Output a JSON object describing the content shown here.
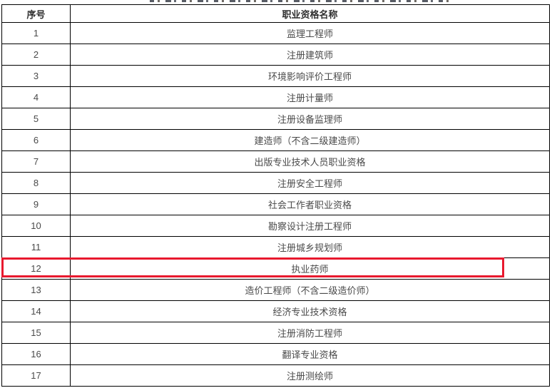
{
  "table": {
    "headers": [
      "序号",
      "职业资格名称"
    ],
    "rows": [
      {
        "no": "1",
        "name": "监理工程师"
      },
      {
        "no": "2",
        "name": "注册建筑师"
      },
      {
        "no": "3",
        "name": "环境影响评价工程师"
      },
      {
        "no": "4",
        "name": "注册计量师"
      },
      {
        "no": "5",
        "name": "注册设备监理师"
      },
      {
        "no": "6",
        "name": "建造师（不含二级建造师）"
      },
      {
        "no": "7",
        "name": "出版专业技术人员职业资格"
      },
      {
        "no": "8",
        "name": "注册安全工程师"
      },
      {
        "no": "9",
        "name": "社会工作者职业资格"
      },
      {
        "no": "10",
        "name": "勘察设计注册工程师"
      },
      {
        "no": "11",
        "name": "注册城乡规划师"
      },
      {
        "no": "12",
        "name": "执业药师"
      },
      {
        "no": "13",
        "name": "造价工程师（不含二级造价师）"
      },
      {
        "no": "14",
        "name": "经济专业技术资格"
      },
      {
        "no": "15",
        "name": "注册消防工程师"
      },
      {
        "no": "16",
        "name": "翻译专业资格"
      },
      {
        "no": "17",
        "name": "注册测绘师"
      }
    ],
    "highlight": {
      "row_no": "12",
      "box_color": "#e8192e"
    }
  },
  "colors": {
    "table_border": "#000000",
    "cell_text": "#4a4a4a",
    "header_text": "#2f2f2f",
    "highlight_red": "#e8192e",
    "background": "#ffffff"
  }
}
